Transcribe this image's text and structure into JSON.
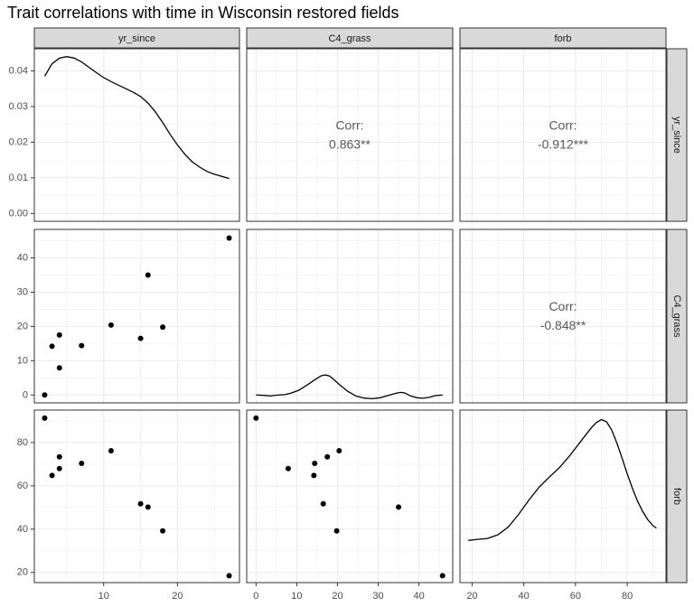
{
  "chart_data": {
    "type": "scatter",
    "title": "Trait correlations with time in Wisconsin restored fields",
    "variables": [
      "yr_since",
      "C4_grass",
      "forb"
    ],
    "ticks": {
      "yr_since": [
        "10",
        "20"
      ],
      "C4_grass": [
        "0",
        "10",
        "20",
        "30",
        "40"
      ],
      "forb": [
        "20",
        "40",
        "60",
        "80"
      ],
      "density_yr_since": [
        "0.00",
        "0.01",
        "0.02",
        "0.03",
        "0.04"
      ]
    },
    "axis_ranges": {
      "yr_since": [
        0.6,
        28.4
      ],
      "C4_grass": [
        -2.3,
        48.3
      ],
      "forb": [
        15.3,
        95.0
      ],
      "density_yr_since": [
        -0.0022,
        0.0462
      ]
    },
    "points": [
      {
        "yr_since": 2,
        "C4_grass": 0.0,
        "forb": 91.3
      },
      {
        "yr_since": 3,
        "C4_grass": 14.2,
        "forb": 64.8
      },
      {
        "yr_since": 4,
        "C4_grass": 17.5,
        "forb": 73.4
      },
      {
        "yr_since": 4,
        "C4_grass": 7.9,
        "forb": 68.0
      },
      {
        "yr_since": 7,
        "C4_grass": 14.4,
        "forb": 70.4
      },
      {
        "yr_since": 11,
        "C4_grass": 20.4,
        "forb": 76.2
      },
      {
        "yr_since": 15,
        "C4_grass": 16.5,
        "forb": 51.7
      },
      {
        "yr_since": 16,
        "C4_grass": 35.0,
        "forb": 50.2
      },
      {
        "yr_since": 18,
        "C4_grass": 19.8,
        "forb": 39.2
      },
      {
        "yr_since": 27,
        "C4_grass": 45.8,
        "forb": 18.5
      }
    ],
    "density": {
      "yr_since": [
        [
          2,
          0.0385
        ],
        [
          3,
          0.042
        ],
        [
          4,
          0.0436
        ],
        [
          5,
          0.044
        ],
        [
          6,
          0.0436
        ],
        [
          7,
          0.0425
        ],
        [
          8,
          0.041
        ],
        [
          9,
          0.0395
        ],
        [
          10,
          0.0381
        ],
        [
          11,
          0.037
        ],
        [
          12,
          0.036
        ],
        [
          13,
          0.035
        ],
        [
          14,
          0.034
        ],
        [
          15,
          0.0328
        ],
        [
          16,
          0.031
        ],
        [
          17,
          0.0285
        ],
        [
          18,
          0.0255
        ],
        [
          19,
          0.0222
        ],
        [
          20,
          0.0192
        ],
        [
          21,
          0.0166
        ],
        [
          22,
          0.0145
        ],
        [
          23,
          0.013
        ],
        [
          24,
          0.0118
        ],
        [
          25,
          0.011
        ],
        [
          26,
          0.0104
        ],
        [
          27,
          0.0098
        ]
      ],
      "C4_grass": [
        [
          0.0,
          0.0
        ],
        [
          2.0,
          -0.1
        ],
        [
          3.5,
          -0.3
        ],
        [
          5.0,
          -0.05
        ],
        [
          7.0,
          0.1
        ],
        [
          8.5,
          0.5
        ],
        [
          10.5,
          1.4
        ],
        [
          12.5,
          2.9
        ],
        [
          14.5,
          4.5
        ],
        [
          16.0,
          5.6
        ],
        [
          17.0,
          5.85
        ],
        [
          18.0,
          5.55
        ],
        [
          19.0,
          4.6
        ],
        [
          20.5,
          3.0
        ],
        [
          22.5,
          1.1
        ],
        [
          24.5,
          -0.3
        ],
        [
          26.5,
          -0.9
        ],
        [
          28.5,
          -1.1
        ],
        [
          30.5,
          -0.8
        ],
        [
          32.5,
          -0.1
        ],
        [
          34.5,
          0.55
        ],
        [
          35.5,
          0.75
        ],
        [
          36.5,
          0.6
        ],
        [
          38.0,
          -0.3
        ],
        [
          39.5,
          -0.8
        ],
        [
          41.0,
          -0.95
        ],
        [
          42.5,
          -0.7
        ],
        [
          44.0,
          -0.2
        ],
        [
          45.8,
          0.0
        ]
      ],
      "forb": [
        [
          18.5,
          34.8
        ],
        [
          22,
          35.3
        ],
        [
          26,
          35.7
        ],
        [
          30,
          37.4
        ],
        [
          34,
          41.0
        ],
        [
          38,
          46.8
        ],
        [
          42,
          53.5
        ],
        [
          46,
          59.5
        ],
        [
          50,
          64.2
        ],
        [
          54,
          68.7
        ],
        [
          58,
          74.3
        ],
        [
          62,
          80.5
        ],
        [
          66,
          86.6
        ],
        [
          68,
          89.2
        ],
        [
          70,
          90.6
        ],
        [
          72,
          89.6
        ],
        [
          74,
          85.8
        ],
        [
          76,
          79.8
        ],
        [
          78,
          72.8
        ],
        [
          80,
          65.6
        ],
        [
          82,
          58.9
        ],
        [
          84,
          53.0
        ],
        [
          86,
          48.1
        ],
        [
          88,
          44.3
        ],
        [
          90,
          41.6
        ],
        [
          91.3,
          40.5
        ]
      ]
    },
    "correlations": [
      {
        "label": "Corr:",
        "value": "0.863**",
        "row": "yr_since",
        "col": "C4_grass"
      },
      {
        "label": "Corr:",
        "value": "-0.912***",
        "row": "yr_since",
        "col": "forb"
      },
      {
        "label": "Corr:",
        "value": "-0.848**",
        "row": "C4_grass",
        "col": "forb"
      }
    ],
    "grid": true,
    "legend": "none"
  }
}
